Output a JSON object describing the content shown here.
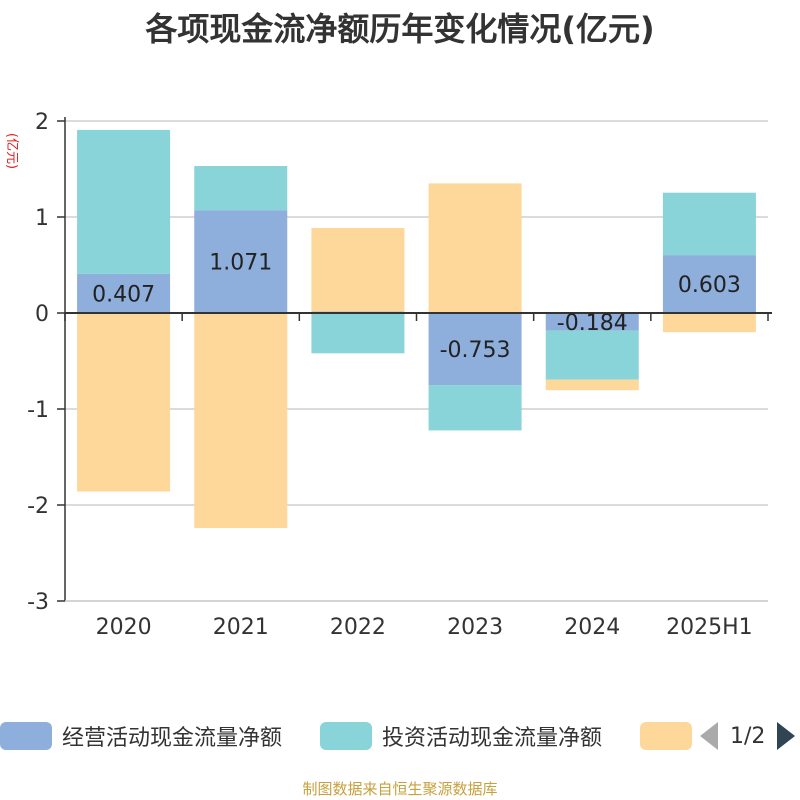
{
  "title": "各项现金流净额历年变化情况(亿元)",
  "source_note": "制图数据来自恒生聚源数据库",
  "legend": {
    "items": [
      {
        "label": "经营活动现金流量净额",
        "color": "#8eaedb"
      },
      {
        "label": "投资活动现金流量净额",
        "color": "#88d4d8"
      },
      {
        "label": "",
        "color": "#fdd89a"
      }
    ],
    "page": "1/2"
  },
  "chart_data": {
    "type": "bar",
    "stacked": true,
    "ylabel": "(亿元)",
    "ylim": [
      -3,
      2
    ],
    "yticks": [
      2,
      1,
      0,
      -1,
      -2,
      -3
    ],
    "categories": [
      "2020",
      "2021",
      "2022",
      "2023",
      "2024",
      "2025H1"
    ],
    "series": [
      {
        "name": "经营活动现金流量净额",
        "color": "#8eaedb",
        "values": [
          0.407,
          1.071,
          0.015,
          -0.753,
          -0.184,
          0.603
        ],
        "labels": [
          "0.407",
          "1.071",
          "",
          "-0.753",
          "-0.184",
          "0.603"
        ]
      },
      {
        "name": "投资活动现金流量净额",
        "color": "#88d4d8",
        "values": [
          1.5,
          0.46,
          -0.42,
          -0.47,
          -0.51,
          0.65
        ]
      },
      {
        "name": "",
        "color": "#fdd89a",
        "values": [
          -1.86,
          -2.24,
          0.87,
          1.35,
          -0.11,
          -0.2
        ]
      }
    ],
    "grid": true,
    "legend_position": "bottom"
  }
}
